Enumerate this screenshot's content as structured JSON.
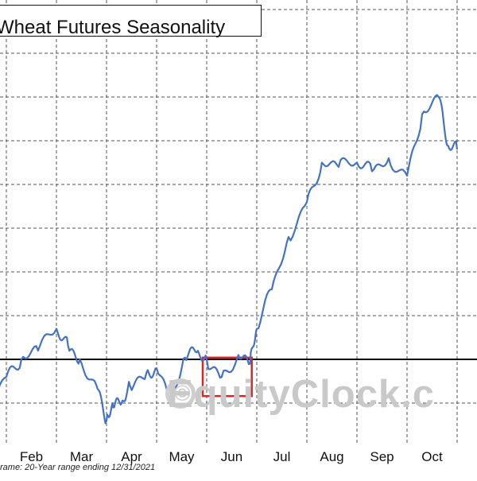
{
  "chart_data": {
    "type": "line",
    "title": "Wheat Futures Seasonality",
    "footer": "rame: 20-Year range ending 12/31/2021",
    "watermark": "EquityClock.c",
    "categories": [
      "Feb",
      "Mar",
      "Apr",
      "May",
      "Jun",
      "Jul",
      "Aug",
      "Sep",
      "Oct"
    ],
    "series": [
      {
        "color": "#4472c4",
        "x": [
          "Jan 20",
          "Feb 1",
          "Feb 10",
          "Feb 20",
          "Mar 1",
          "Mar 8",
          "Mar 15",
          "Mar 25",
          "Apr 1",
          "Apr 5",
          "Apr 10",
          "Apr 15",
          "Apr 25",
          "May 1",
          "May 10",
          "May 18",
          "May 25",
          "Jun 1",
          "Jun 10",
          "Jun 20",
          "Jun 27",
          "Jul 1",
          "Jul 10",
          "Jul 20",
          "Aug 1",
          "Aug 10",
          "Aug 20",
          "Sep 1",
          "Sep 10",
          "Sep 20",
          "Oct 1",
          "Oct 10",
          "Oct 20",
          "Oct 25",
          "Nov 1"
        ],
        "values": [
          -4.5,
          -2.0,
          0.0,
          1.0,
          3.5,
          1.5,
          0.0,
          -3.0,
          -7.0,
          -5.5,
          -5.0,
          -3.0,
          -1.5,
          -1.0,
          -5.0,
          0.2,
          0.8,
          0.0,
          -2.0,
          0.5,
          -0.5,
          3.5,
          8.0,
          14.0,
          18.0,
          22.5,
          22.0,
          22.5,
          21.5,
          23.0,
          21.0,
          28.0,
          30.0,
          24.5,
          24.0
        ]
      }
    ],
    "ylim": [
      -9,
      40
    ],
    "baseline": 0,
    "highlight": {
      "label": "Jun",
      "x_range": [
        "Jun 1",
        "Jun 28"
      ],
      "color": "#d62728"
    },
    "grid": true
  }
}
